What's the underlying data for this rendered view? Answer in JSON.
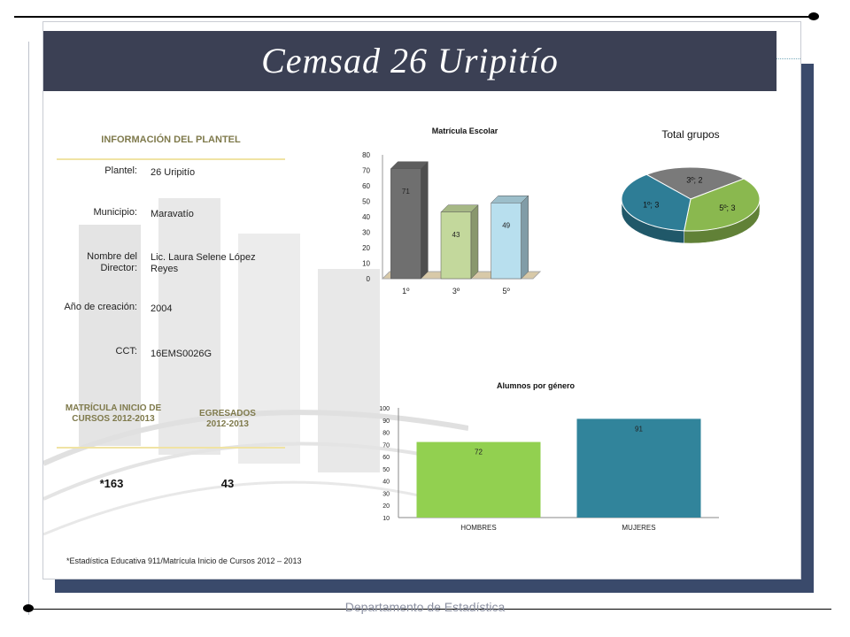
{
  "title": "Cemsad 26 Uripitío",
  "info": {
    "heading": "INFORMACIÓN DEL PLANTEL",
    "rows": [
      {
        "label": "Plantel:",
        "value": "26 Uripitío"
      },
      {
        "label": "Municipio:",
        "value": "Maravatío"
      },
      {
        "label": "Nombre del Director:",
        "value": "Lic. Laura Selene López Reyes"
      },
      {
        "label": "Año de creación:",
        "value": "2004"
      },
      {
        "label": "CCT:",
        "value": "16EMS0026G"
      }
    ]
  },
  "stats": {
    "matricula_heading": "MATRÍCULA INICIO DE CURSOS 2012-2013",
    "egresados_heading": "EGRESADOS 2012-2013",
    "matricula_value": "*163",
    "egresados_value": "43"
  },
  "footnote": "*Estadística Educativa 911/Matrícula Inicio de Cursos 2012 – 2013",
  "footer": "Departamento de Estadística",
  "chart_data": [
    {
      "type": "bar",
      "title": "Matrícula Escolar",
      "categories": [
        "1º",
        "3º",
        "5º"
      ],
      "values": [
        71,
        43,
        49
      ],
      "colors": [
        "#6f6f6f",
        "#c3d89c",
        "#b8dfee"
      ],
      "ylim": [
        0,
        80
      ],
      "yticks": [
        "0",
        "10",
        "20",
        "30",
        "40",
        "50",
        "60",
        "70",
        "80"
      ]
    },
    {
      "type": "pie",
      "title": "Total grupos",
      "labels": [
        "3º; 2",
        "5º; 3",
        "1º; 3"
      ],
      "values": [
        2,
        3,
        3
      ],
      "colors": [
        "#7a7a7a",
        "#8ab84f",
        "#2e7d96"
      ]
    },
    {
      "type": "bar",
      "title": "Alumnos por género",
      "categories": [
        "HOMBRES",
        "MUJERES"
      ],
      "values": [
        72,
        91
      ],
      "colors": [
        "#92d050",
        "#31849b"
      ],
      "ylim": [
        10,
        100
      ],
      "yticks": [
        "10",
        "20",
        "30",
        "40",
        "50",
        "60",
        "70",
        "80",
        "90",
        "100"
      ]
    }
  ]
}
